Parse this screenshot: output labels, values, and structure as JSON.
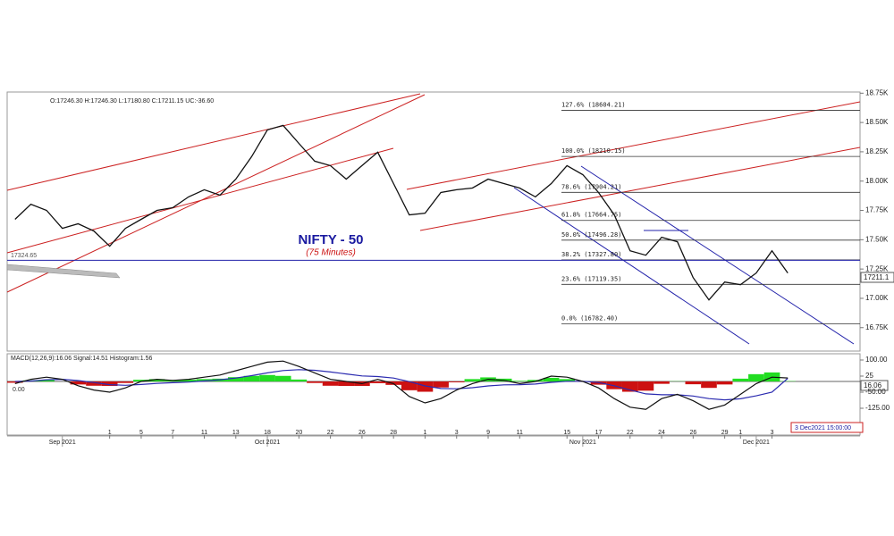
{
  "chart_data": [
    {
      "type": "line",
      "header": "O:17246.30 H:17246.30 L:17180.80 C:17211.15 UC:-36.60",
      "title": "NIFTY - 50",
      "subtitle": "(75 Minutes)",
      "categories": [
        null,
        null,
        null,
        null,
        null,
        null,
        "1",
        null,
        "5",
        null,
        "7",
        null,
        "11",
        null,
        "13",
        null,
        "18",
        null,
        "20",
        null,
        "22",
        null,
        "26",
        null,
        "28",
        null,
        "1",
        null,
        "3",
        null,
        "9",
        null,
        "11",
        null,
        null,
        "15",
        null,
        "17",
        null,
        "22",
        null,
        "24",
        null,
        "26",
        null,
        "29",
        "1",
        null,
        "3",
        null
      ],
      "month_ticks": [
        {
          "value": 3,
          "label": "Sep 2021"
        },
        {
          "value": 16,
          "label": "Oct 2021"
        },
        {
          "value": 36,
          "label": "Nov 2021"
        },
        {
          "value": 47,
          "label": "Dec 2021"
        }
      ],
      "values": [
        17674,
        17803,
        17750,
        17597,
        17636,
        17574,
        17445,
        17597,
        17674,
        17750,
        17773,
        17865,
        17926,
        17880,
        18017,
        18208,
        18437,
        18475,
        18322,
        18170,
        18132,
        18017,
        18132,
        18246,
        17979,
        17712,
        17727,
        17903,
        17926,
        17941,
        18017,
        17979,
        17941,
        17865,
        17979,
        18132,
        18055,
        17903,
        17712,
        17406,
        17368,
        17521,
        17483,
        17177,
        16987,
        17139,
        17116,
        17216,
        17406,
        17216
      ],
      "color": "#111111",
      "ylim": [
        16550,
        18760
      ],
      "yticks": [
        {
          "value": 18750,
          "label": "18.75K"
        },
        {
          "value": 18500,
          "label": "18.50K"
        },
        {
          "value": 18250,
          "label": "18.25K"
        },
        {
          "value": 18000,
          "label": "18.00K"
        },
        {
          "value": 17750,
          "label": "17.75K"
        },
        {
          "value": 17500,
          "label": "17.50K"
        },
        {
          "value": 17250,
          "label": "17.25K"
        },
        {
          "value": 17000,
          "label": "17.00K"
        },
        {
          "value": 16750,
          "label": "16.75K"
        }
      ],
      "fib_levels": [
        {
          "value": 18604.21,
          "label": "127.6% (18604.21)"
        },
        {
          "value": 18210.15,
          "label": "100.0% (18210.15)"
        },
        {
          "value": 17904.21,
          "label": "78.6% (17904.21)"
        },
        {
          "value": 17664.75,
          "label": "61.8% (17664.75)"
        },
        {
          "value": 17496.28,
          "label": "50.0% (17496.28)"
        },
        {
          "value": 17327.8,
          "label": "38.2% (17327.80)"
        },
        {
          "value": 17119.35,
          "label": "23.6% (17119.35)"
        },
        {
          "value": 16782.4,
          "label": "0.0% (16782.40)"
        }
      ],
      "reference_line": {
        "value": 17324.65,
        "label": "17324.65"
      },
      "last_label": "17211.1",
      "date_label": "3 Dec2021 15:00:00"
    },
    {
      "type": "macd",
      "header": "MACD(12,26,9):16.06 Signal:14.51 Histogram:1.56",
      "zero_label": "0.00",
      "last_label": "16.06",
      "macd": {
        "color": "#111111",
        "values": [
          -10,
          10,
          20,
          10,
          -20,
          -40,
          -50,
          -30,
          0,
          10,
          5,
          10,
          20,
          30,
          50,
          70,
          90,
          95,
          70,
          40,
          10,
          0,
          -10,
          10,
          -10,
          -70,
          -100,
          -80,
          -40,
          -10,
          10,
          5,
          -10,
          0,
          25,
          20,
          0,
          -30,
          -80,
          -120,
          -130,
          -80,
          -60,
          -90,
          -130,
          -110,
          -60,
          -10,
          20,
          16.06
        ]
      },
      "signal": {
        "color": "#2b2bb0",
        "values": [
          0,
          2,
          8,
          10,
          4,
          -5,
          -15,
          -18,
          -14,
          -9,
          -6,
          -3,
          2,
          8,
          16,
          27,
          40,
          51,
          55,
          52,
          44,
          35,
          26,
          23,
          16,
          -1,
          -21,
          -33,
          -34,
          -29,
          -21,
          -16,
          -15,
          -12,
          -4,
          1,
          1,
          -5,
          -20,
          -40,
          -58,
          -62,
          -62,
          -68,
          -80,
          -86,
          -81,
          -67,
          -50,
          14.51
        ]
      },
      "histogram": {
        "positive_color": "#22dd22",
        "negative_color": "#cc1111",
        "values": [
          -6,
          5,
          8,
          0,
          -14,
          -20,
          -21,
          -7,
          8,
          11,
          7,
          8,
          11,
          13,
          20,
          26,
          30,
          26,
          9,
          -7,
          -20,
          -21,
          -21,
          -8,
          -16,
          -41,
          -48,
          -28,
          -4,
          11,
          19,
          13,
          3,
          7,
          17,
          11,
          -1,
          -15,
          -36,
          -48,
          -43,
          -11,
          1,
          -13,
          -30,
          -14,
          13,
          34,
          42,
          1.56
        ]
      },
      "ylim": [
        -250,
        125
      ],
      "yticks": [
        {
          "value": 100,
          "label": "100.00"
        },
        25,
        {
          "value": -50,
          "label": "-50.00"
        },
        {
          "value": -125,
          "label": "-125.00"
        }
      ]
    }
  ]
}
